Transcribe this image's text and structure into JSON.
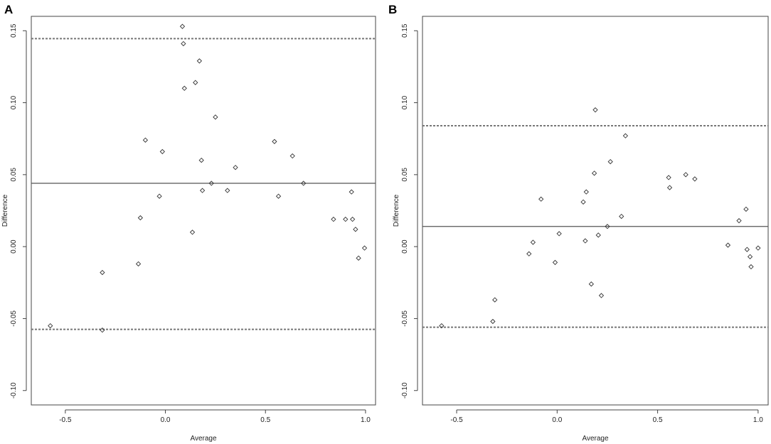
{
  "chart_data": [
    {
      "type": "scatter",
      "panel": "A",
      "xlabel": "Average",
      "ylabel": "Difference",
      "xlim": [
        -0.67,
        1.05
      ],
      "ylim": [
        -0.11,
        0.16
      ],
      "xticks": [
        -0.5,
        0.0,
        0.5,
        1.0
      ],
      "xtick_labels": [
        "-0.5",
        "0.0",
        "0.5",
        "1.0"
      ],
      "yticks": [
        -0.1,
        -0.05,
        0.0,
        0.05,
        0.1,
        0.15
      ],
      "ytick_labels": [
        "-0.10",
        "-0.05",
        "0.00",
        "0.05",
        "0.10",
        "0.15"
      ],
      "mean_difference": 0.044,
      "upper_limit": 0.1445,
      "lower_limit": -0.0575,
      "grid": false,
      "points": [
        {
          "x": -0.575,
          "y": -0.055
        },
        {
          "x": -0.315,
          "y": -0.058
        },
        {
          "x": -0.315,
          "y": -0.018
        },
        {
          "x": -0.135,
          "y": -0.012
        },
        {
          "x": -0.125,
          "y": 0.02
        },
        {
          "x": -0.1,
          "y": 0.074
        },
        {
          "x": -0.03,
          "y": 0.035
        },
        {
          "x": -0.015,
          "y": 0.066
        },
        {
          "x": 0.085,
          "y": 0.153
        },
        {
          "x": 0.09,
          "y": 0.141
        },
        {
          "x": 0.095,
          "y": 0.11
        },
        {
          "x": 0.135,
          "y": 0.01
        },
        {
          "x": 0.15,
          "y": 0.114
        },
        {
          "x": 0.17,
          "y": 0.129
        },
        {
          "x": 0.18,
          "y": 0.06
        },
        {
          "x": 0.185,
          "y": 0.039
        },
        {
          "x": 0.23,
          "y": 0.044
        },
        {
          "x": 0.25,
          "y": 0.09
        },
        {
          "x": 0.31,
          "y": 0.039
        },
        {
          "x": 0.35,
          "y": 0.055
        },
        {
          "x": 0.545,
          "y": 0.073
        },
        {
          "x": 0.565,
          "y": 0.035
        },
        {
          "x": 0.635,
          "y": 0.063
        },
        {
          "x": 0.69,
          "y": 0.044
        },
        {
          "x": 0.84,
          "y": 0.019
        },
        {
          "x": 0.9,
          "y": 0.019
        },
        {
          "x": 0.93,
          "y": 0.038
        },
        {
          "x": 0.935,
          "y": 0.019
        },
        {
          "x": 0.95,
          "y": 0.012
        },
        {
          "x": 0.965,
          "y": -0.008
        },
        {
          "x": 0.995,
          "y": -0.001
        }
      ]
    },
    {
      "type": "scatter",
      "panel": "B",
      "xlabel": "Average",
      "ylabel": "Difference",
      "xlim": [
        -0.67,
        1.05
      ],
      "ylim": [
        -0.11,
        0.16
      ],
      "xticks": [
        -0.5,
        0.0,
        0.5,
        1.0
      ],
      "xtick_labels": [
        "-0.5",
        "0.0",
        "0.5",
        "1.0"
      ],
      "yticks": [
        -0.1,
        -0.05,
        0.0,
        0.05,
        0.1,
        0.15
      ],
      "ytick_labels": [
        "-0.10",
        "-0.05",
        "0.00",
        "0.05",
        "0.10",
        "0.15"
      ],
      "mean_difference": 0.014,
      "upper_limit": 0.084,
      "lower_limit": -0.056,
      "grid": false,
      "points": [
        {
          "x": -0.575,
          "y": -0.055
        },
        {
          "x": -0.32,
          "y": -0.052
        },
        {
          "x": -0.31,
          "y": -0.037
        },
        {
          "x": -0.14,
          "y": -0.005
        },
        {
          "x": -0.12,
          "y": 0.003
        },
        {
          "x": -0.08,
          "y": 0.033
        },
        {
          "x": -0.01,
          "y": -0.011
        },
        {
          "x": 0.01,
          "y": 0.009
        },
        {
          "x": 0.13,
          "y": 0.031
        },
        {
          "x": 0.14,
          "y": 0.004
        },
        {
          "x": 0.145,
          "y": 0.038
        },
        {
          "x": 0.17,
          "y": -0.026
        },
        {
          "x": 0.185,
          "y": 0.051
        },
        {
          "x": 0.19,
          "y": 0.095
        },
        {
          "x": 0.205,
          "y": 0.008
        },
        {
          "x": 0.22,
          "y": -0.034
        },
        {
          "x": 0.25,
          "y": 0.014
        },
        {
          "x": 0.265,
          "y": 0.059
        },
        {
          "x": 0.32,
          "y": 0.021
        },
        {
          "x": 0.34,
          "y": 0.077
        },
        {
          "x": 0.555,
          "y": 0.048
        },
        {
          "x": 0.56,
          "y": 0.041
        },
        {
          "x": 0.64,
          "y": 0.05
        },
        {
          "x": 0.685,
          "y": 0.047
        },
        {
          "x": 0.85,
          "y": 0.001
        },
        {
          "x": 0.905,
          "y": 0.018
        },
        {
          "x": 0.94,
          "y": 0.026
        },
        {
          "x": 0.945,
          "y": -0.002
        },
        {
          "x": 0.96,
          "y": -0.007
        },
        {
          "x": 0.965,
          "y": -0.014
        },
        {
          "x": 1.0,
          "y": -0.001
        }
      ]
    }
  ]
}
